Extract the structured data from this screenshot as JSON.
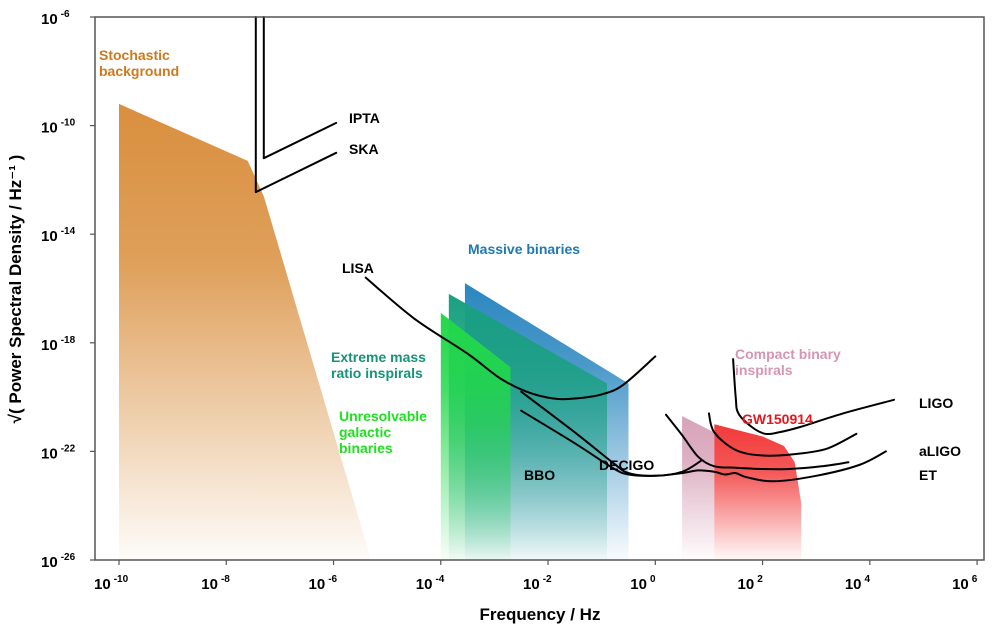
{
  "chart_data": {
    "type": "area",
    "xlabel": "Frequency / Hz",
    "ylabel": "√( Power Spectral Density / Hz⁻¹ )",
    "x_scale": "log",
    "y_scale": "log",
    "xlim": [
      1e-10,
      1000000.0
    ],
    "ylim": [
      1e-26,
      1e-06
    ],
    "x_ticks": [
      {
        "base": "10",
        "exp": "-10",
        "value": -10
      },
      {
        "base": "10",
        "exp": "-8",
        "value": -8
      },
      {
        "base": "10",
        "exp": "-6",
        "value": -6
      },
      {
        "base": "10",
        "exp": "-4",
        "value": -4
      },
      {
        "base": "10",
        "exp": "-2",
        "value": -2
      },
      {
        "base": "10",
        "exp": "0",
        "value": 0
      },
      {
        "base": "10",
        "exp": "2",
        "value": 2
      },
      {
        "base": "10",
        "exp": "4",
        "value": 4
      },
      {
        "base": "10",
        "exp": "6",
        "value": 6
      }
    ],
    "y_ticks": [
      {
        "base": "10",
        "exp": "-6",
        "value": -6
      },
      {
        "base": "10",
        "exp": "-10",
        "value": -10
      },
      {
        "base": "10",
        "exp": "-14",
        "value": -14
      },
      {
        "base": "10",
        "exp": "-18",
        "value": -18
      },
      {
        "base": "10",
        "exp": "-22",
        "value": -22
      },
      {
        "base": "10",
        "exp": "-26",
        "value": -26
      }
    ],
    "regions": [
      {
        "name": "Stochastic background",
        "label_lines": [
          "Stochastic",
          "background"
        ],
        "color": "#d98f3e",
        "polygon": [
          [
            -10,
            -9.2
          ],
          [
            -7.6,
            -11.3
          ],
          [
            -7.3,
            -12.6
          ],
          [
            -5.3,
            -26
          ],
          [
            -10,
            -26
          ]
        ]
      },
      {
        "name": "Massive binaries",
        "label_lines": [
          "Massive binaries"
        ],
        "color": "#2b87c0",
        "polygon": [
          [
            -3.55,
            -15.8
          ],
          [
            -0.5,
            -19.5
          ],
          [
            -0.5,
            -26
          ],
          [
            -3.55,
            -26
          ]
        ]
      },
      {
        "name": "Extreme mass ratio inspirals",
        "label_lines": [
          "Extreme mass",
          "ratio inspirals"
        ],
        "color": "#19a080",
        "polygon": [
          [
            -3.85,
            -16.2
          ],
          [
            -0.9,
            -19.5
          ],
          [
            -0.9,
            -26
          ],
          [
            -3.85,
            -26
          ]
        ]
      },
      {
        "name": "Unresolvable galactic binaries",
        "label_lines": [
          "Unresolvable",
          "galactic",
          "binaries"
        ],
        "color": "#22d84a",
        "polygon": [
          [
            -4.0,
            -16.9
          ],
          [
            -2.7,
            -18.9
          ],
          [
            -2.7,
            -26
          ],
          [
            -4.0,
            -26
          ]
        ]
      },
      {
        "name": "Compact binary inspirals",
        "label_lines": [
          "Compact binary",
          "inspirals"
        ],
        "color": "#d8a2b8",
        "polygon": [
          [
            0.5,
            -20.7
          ],
          [
            1.1,
            -21.3
          ],
          [
            1.1,
            -26
          ],
          [
            0.5,
            -26
          ]
        ]
      },
      {
        "name": "GW150914",
        "label_lines": [
          "GW150914"
        ],
        "color": "#f23a3a",
        "polygon": [
          [
            1.1,
            -21.0
          ],
          [
            2.0,
            -21.45
          ],
          [
            2.4,
            -21.8
          ],
          [
            2.6,
            -22.4
          ],
          [
            2.72,
            -23.9
          ],
          [
            2.72,
            -26
          ],
          [
            1.1,
            -26
          ]
        ]
      }
    ],
    "detectors": [
      {
        "name": "IPTA",
        "points": [
          [
            -7.3,
            -6.0
          ],
          [
            -7.3,
            -11.2
          ],
          [
            -5.95,
            -9.9
          ]
        ]
      },
      {
        "name": "SKA",
        "points": [
          [
            -7.45,
            -6.0
          ],
          [
            -7.45,
            -12.45
          ],
          [
            -5.95,
            -11.0
          ]
        ]
      },
      {
        "name": "LISA",
        "points": [
          [
            -5.4,
            -15.6
          ],
          [
            -4.5,
            -17.1
          ],
          [
            -3.5,
            -18.4
          ],
          [
            -2.9,
            -19.3
          ],
          [
            -2.4,
            -19.8
          ],
          [
            -1.9,
            -20.05
          ],
          [
            -1.5,
            -20.05
          ],
          [
            -1.0,
            -19.9
          ],
          [
            -0.6,
            -19.55
          ],
          [
            0.0,
            -18.5
          ]
        ]
      },
      {
        "name": "BBO",
        "points": [
          [
            -2.5,
            -19.8
          ],
          [
            -1.5,
            -21.3
          ],
          [
            -0.8,
            -22.4
          ],
          [
            -0.5,
            -22.8
          ],
          [
            0.0,
            -22.9
          ],
          [
            0.5,
            -22.75
          ],
          [
            0.85,
            -22.35
          ]
        ]
      },
      {
        "name": "DECIGO",
        "points": [
          [
            -2.5,
            -20.5
          ],
          [
            -1.5,
            -21.7
          ],
          [
            -0.8,
            -22.6
          ],
          [
            -0.5,
            -22.85
          ],
          [
            0.0,
            -22.9
          ],
          [
            0.5,
            -22.8
          ],
          [
            0.8,
            -22.7
          ],
          [
            1.1,
            -22.75
          ],
          [
            1.3,
            -22.85
          ],
          [
            1.5,
            -22.8
          ],
          [
            1.7,
            -22.95
          ],
          [
            2.2,
            -23.1
          ],
          [
            3.0,
            -22.9
          ],
          [
            3.8,
            -22.5
          ],
          [
            4.3,
            -22.0
          ]
        ]
      },
      {
        "name": "LIGO",
        "points": [
          [
            1.45,
            -18.6
          ],
          [
            1.5,
            -20.0
          ],
          [
            1.55,
            -20.6
          ],
          [
            1.8,
            -21.1
          ],
          [
            2.05,
            -21.35
          ],
          [
            2.3,
            -21.3
          ],
          [
            2.7,
            -21.1
          ],
          [
            3.5,
            -20.6
          ],
          [
            4.45,
            -20.1
          ]
        ]
      },
      {
        "name": "aLIGO",
        "points": [
          [
            1.0,
            -20.6
          ],
          [
            1.1,
            -21.3
          ],
          [
            1.5,
            -21.95
          ],
          [
            2.0,
            -22.15
          ],
          [
            2.6,
            -22.1
          ],
          [
            3.2,
            -21.9
          ],
          [
            3.75,
            -21.35
          ]
        ]
      },
      {
        "name": "ET",
        "points": [
          [
            0.2,
            -20.65
          ],
          [
            0.5,
            -21.4
          ],
          [
            0.8,
            -22.2
          ],
          [
            1.1,
            -22.55
          ],
          [
            1.5,
            -22.6
          ],
          [
            2.0,
            -22.65
          ],
          [
            2.5,
            -22.65
          ],
          [
            3.1,
            -22.55
          ],
          [
            3.6,
            -22.4
          ]
        ]
      }
    ],
    "annotations": [
      {
        "text": "GW150914",
        "color": "#e8151c"
      }
    ]
  }
}
